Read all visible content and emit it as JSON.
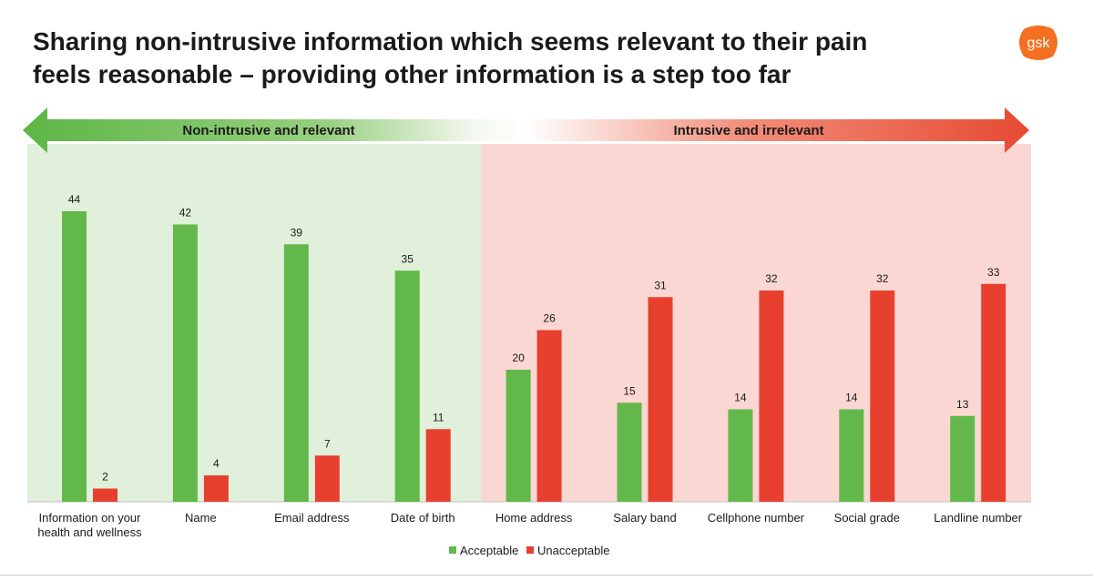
{
  "page": {
    "title_line1": "Sharing non-intrusive information which seems relevant to their pain",
    "title_line2": "feels reasonable – providing other information is a step too far",
    "logo_text": "gsk"
  },
  "colors": {
    "acceptable": "#62b84a",
    "unacceptable": "#e8402f",
    "left_zone": "#e0f0da",
    "right_zone": "#fad7d2",
    "arrow_green": "#5db645",
    "arrow_red": "#e64a33",
    "logo_orange": "#f36f21"
  },
  "zones": {
    "left_label": "Non-intrusive and relevant",
    "right_label": "Intrusive and irrelevant"
  },
  "chart_data": {
    "type": "bar",
    "categories": [
      "Information on your health and wellness",
      "Name",
      "Email address",
      "Date of birth",
      "Home address",
      "Salary band",
      "Cellphone number",
      "Social grade",
      "Landline number"
    ],
    "series": [
      {
        "name": "Acceptable",
        "values": [
          44,
          42,
          39,
          35,
          20,
          15,
          14,
          14,
          13
        ]
      },
      {
        "name": "Unacceptable",
        "values": [
          2,
          4,
          7,
          11,
          26,
          31,
          32,
          32,
          33
        ]
      }
    ],
    "ylim": [
      0,
      44
    ],
    "legend": "bottom-center",
    "grid": false,
    "data_labels": true
  }
}
